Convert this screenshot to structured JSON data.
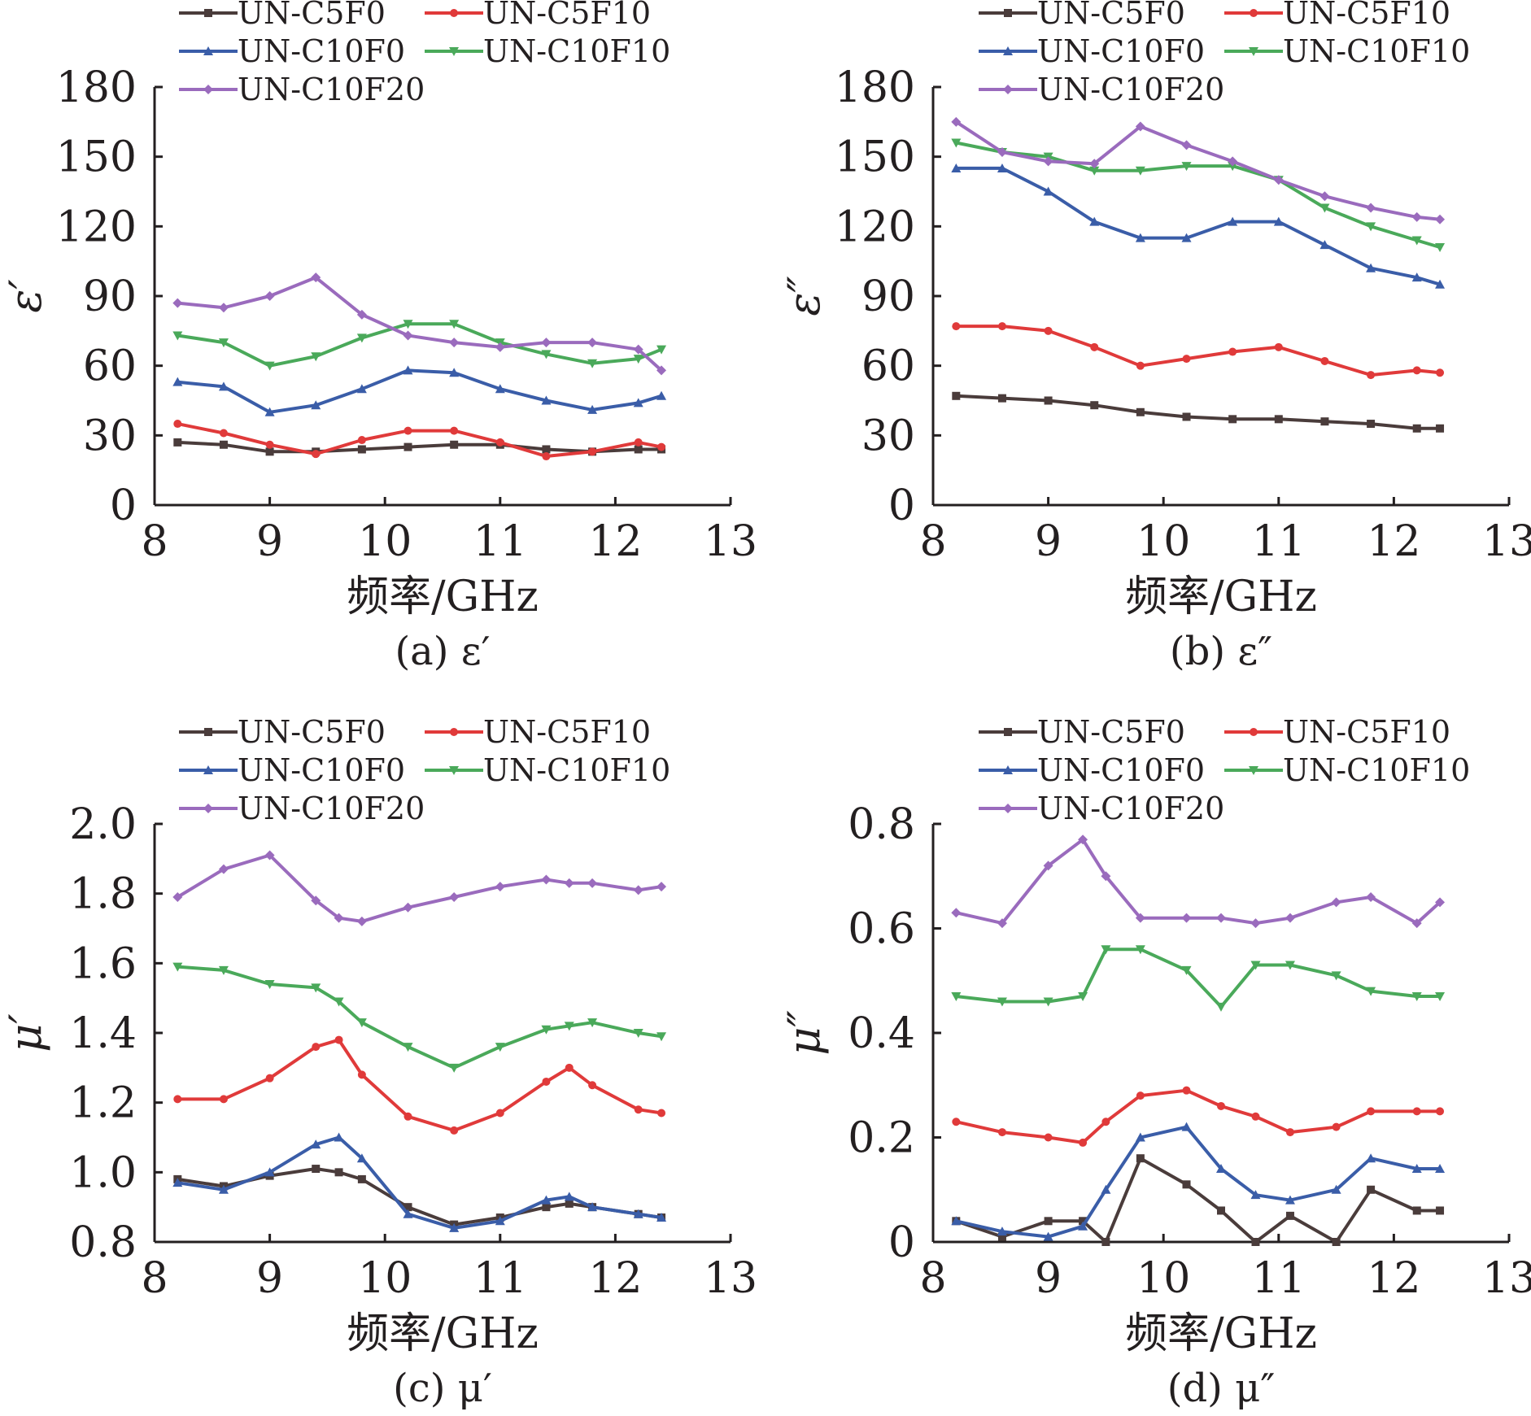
{
  "series_names": [
    "UN-C5F0",
    "UN-C5F10",
    "UN-C10F0",
    "UN-C10F10",
    "UN-C10F20"
  ],
  "series_colors": [
    "#4a3c3b",
    "#e03a3a",
    "#3a5da8",
    "#4aa95a",
    "#9a6bbd"
  ],
  "chart_data": [
    {
      "type": "line",
      "caption": "(a) ε′",
      "ylabel": "ε′",
      "xlabel": "频率/GHz",
      "xlim": [
        8,
        13
      ],
      "ylim": [
        0,
        180
      ],
      "xticks": [
        "8",
        "9",
        "10",
        "11",
        "12",
        "13"
      ],
      "yticks": [
        "0",
        "30",
        "60",
        "90",
        "120",
        "150",
        "180"
      ],
      "legend": "top-left",
      "grid": false,
      "x": [
        8.2,
        8.6,
        9.0,
        9.4,
        9.8,
        10.2,
        10.6,
        11.0,
        11.4,
        11.8,
        12.2,
        12.4
      ],
      "series": [
        {
          "name": "UN-C5F0",
          "values": [
            27,
            26,
            23,
            23,
            24,
            25,
            26,
            26,
            24,
            23,
            24,
            24
          ]
        },
        {
          "name": "UN-C5F10",
          "values": [
            35,
            31,
            26,
            22,
            28,
            32,
            32,
            27,
            21,
            23,
            27,
            25
          ]
        },
        {
          "name": "UN-C10F0",
          "values": [
            53,
            51,
            40,
            43,
            50,
            58,
            57,
            50,
            45,
            41,
            44,
            47
          ]
        },
        {
          "name": "UN-C10F10",
          "values": [
            73,
            70,
            60,
            64,
            72,
            78,
            78,
            70,
            65,
            61,
            63,
            67
          ]
        },
        {
          "name": "UN-C10F20",
          "values": [
            87,
            85,
            90,
            98,
            82,
            73,
            70,
            68,
            70,
            70,
            67,
            58
          ]
        }
      ]
    },
    {
      "type": "line",
      "caption": "(b) ε″",
      "ylabel": "ε″",
      "xlabel": "频率/GHz",
      "xlim": [
        8,
        13
      ],
      "ylim": [
        0,
        180
      ],
      "xticks": [
        "8",
        "9",
        "10",
        "11",
        "12",
        "13"
      ],
      "yticks": [
        "0",
        "30",
        "60",
        "90",
        "120",
        "150",
        "180"
      ],
      "legend": "top-left",
      "grid": false,
      "x": [
        8.2,
        8.6,
        9.0,
        9.4,
        9.8,
        10.2,
        10.6,
        11.0,
        11.4,
        11.8,
        12.2,
        12.4
      ],
      "series": [
        {
          "name": "UN-C5F0",
          "values": [
            47,
            46,
            45,
            43,
            40,
            38,
            37,
            37,
            36,
            35,
            33,
            33
          ]
        },
        {
          "name": "UN-C5F10",
          "values": [
            77,
            77,
            75,
            68,
            60,
            63,
            66,
            68,
            62,
            56,
            58,
            57
          ]
        },
        {
          "name": "UN-C10F0",
          "values": [
            145,
            145,
            135,
            122,
            115,
            115,
            122,
            122,
            112,
            102,
            98,
            95
          ]
        },
        {
          "name": "UN-C10F10",
          "values": [
            156,
            152,
            150,
            144,
            144,
            146,
            146,
            140,
            128,
            120,
            114,
            111
          ]
        },
        {
          "name": "UN-C10F20",
          "values": [
            165,
            152,
            148,
            147,
            163,
            155,
            148,
            140,
            133,
            128,
            124,
            123
          ]
        }
      ]
    },
    {
      "type": "line",
      "caption": "(c) μ′",
      "ylabel": "μ′",
      "xlabel": "频率/GHz",
      "xlim": [
        8,
        13
      ],
      "ylim": [
        0.8,
        2.0
      ],
      "xticks": [
        "8",
        "9",
        "10",
        "11",
        "12",
        "13"
      ],
      "yticks": [
        "0.8",
        "1.0",
        "1.2",
        "1.4",
        "1.6",
        "1.8",
        "2.0"
      ],
      "legend": "top-left",
      "grid": false,
      "x": [
        8.2,
        8.6,
        9.0,
        9.4,
        9.6,
        9.8,
        10.2,
        10.6,
        11.0,
        11.4,
        11.6,
        11.8,
        12.2,
        12.4
      ],
      "series": [
        {
          "name": "UN-C5F0",
          "values": [
            0.98,
            0.96,
            0.99,
            1.01,
            1.0,
            0.98,
            0.9,
            0.85,
            0.87,
            0.9,
            0.91,
            0.9,
            0.88,
            0.87
          ]
        },
        {
          "name": "UN-C5F10",
          "values": [
            1.21,
            1.21,
            1.27,
            1.36,
            1.38,
            1.28,
            1.16,
            1.12,
            1.17,
            1.26,
            1.3,
            1.25,
            1.18,
            1.17
          ]
        },
        {
          "name": "UN-C10F0",
          "values": [
            0.97,
            0.95,
            1.0,
            1.08,
            1.1,
            1.04,
            0.88,
            0.84,
            0.86,
            0.92,
            0.93,
            0.9,
            0.88,
            0.87
          ]
        },
        {
          "name": "UN-C10F10",
          "values": [
            1.59,
            1.58,
            1.54,
            1.53,
            1.49,
            1.43,
            1.36,
            1.3,
            1.36,
            1.41,
            1.42,
            1.43,
            1.4,
            1.39
          ]
        },
        {
          "name": "UN-C10F20",
          "values": [
            1.79,
            1.87,
            1.91,
            1.78,
            1.73,
            1.72,
            1.76,
            1.79,
            1.82,
            1.84,
            1.83,
            1.83,
            1.81,
            1.82
          ]
        }
      ]
    },
    {
      "type": "line",
      "caption": "(d) μ″",
      "ylabel": "μ″",
      "xlabel": "频率/GHz",
      "xlim": [
        8,
        13
      ],
      "ylim": [
        0,
        0.8
      ],
      "xticks": [
        "8",
        "9",
        "10",
        "11",
        "12",
        "13"
      ],
      "yticks": [
        "0",
        "0.2",
        "0.4",
        "0.6",
        "0.8"
      ],
      "legend": "top-left",
      "grid": false,
      "x": [
        8.2,
        8.6,
        9.0,
        9.3,
        9.5,
        9.8,
        10.2,
        10.5,
        10.8,
        11.1,
        11.5,
        11.8,
        12.2,
        12.4
      ],
      "series": [
        {
          "name": "UN-C5F0",
          "values": [
            0.04,
            0.01,
            0.04,
            0.04,
            0.0,
            0.16,
            0.11,
            0.06,
            0.0,
            0.05,
            0.0,
            0.1,
            0.06,
            0.06
          ]
        },
        {
          "name": "UN-C5F10",
          "values": [
            0.23,
            0.21,
            0.2,
            0.19,
            0.23,
            0.28,
            0.29,
            0.26,
            0.24,
            0.21,
            0.22,
            0.25,
            0.25,
            0.25
          ]
        },
        {
          "name": "UN-C10F0",
          "values": [
            0.04,
            0.02,
            0.01,
            0.03,
            0.1,
            0.2,
            0.22,
            0.14,
            0.09,
            0.08,
            0.1,
            0.16,
            0.14,
            0.14
          ]
        },
        {
          "name": "UN-C10F10",
          "values": [
            0.47,
            0.46,
            0.46,
            0.47,
            0.56,
            0.56,
            0.52,
            0.45,
            0.53,
            0.53,
            0.51,
            0.48,
            0.47,
            0.47
          ]
        },
        {
          "name": "UN-C10F20",
          "values": [
            0.63,
            0.61,
            0.72,
            0.77,
            0.7,
            0.62,
            0.62,
            0.62,
            0.61,
            0.62,
            0.65,
            0.66,
            0.61,
            0.65
          ]
        }
      ]
    }
  ]
}
